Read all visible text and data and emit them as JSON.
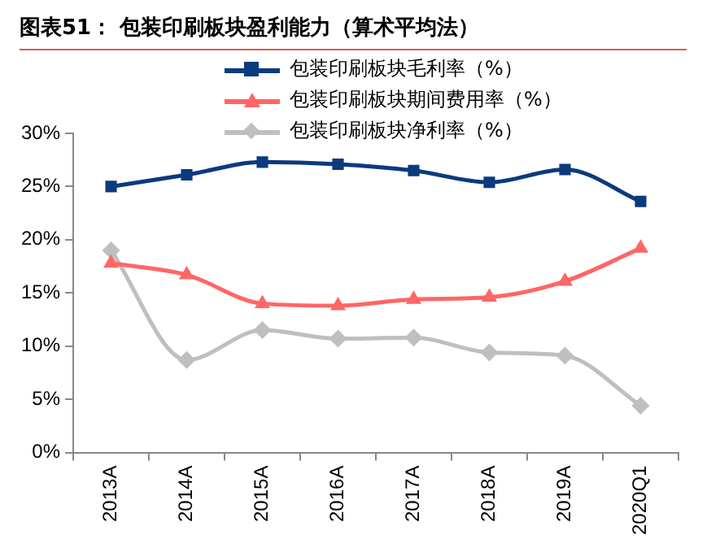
{
  "chart_data": {
    "type": "line",
    "title": "图表51：  包装印刷板块盈利能力（算术平均法）",
    "categories": [
      "2013A",
      "2014A",
      "2015A",
      "2016A",
      "2017A",
      "2018A",
      "2019A",
      "2020Q1"
    ],
    "series": [
      {
        "name": "包装印刷板块毛利率（%）",
        "color": "#0b3a7e",
        "marker": "square",
        "values": [
          25.0,
          26.1,
          27.3,
          27.1,
          26.5,
          25.4,
          26.6,
          23.6
        ]
      },
      {
        "name": "包装印刷板块期间费用率（%）",
        "color": "#ff6666",
        "marker": "triangle",
        "values": [
          17.8,
          16.7,
          14.0,
          13.8,
          14.4,
          14.6,
          16.1,
          19.2
        ]
      },
      {
        "name": "包装印刷板块净利率（%）",
        "color": "#bfbfbf",
        "marker": "diamond",
        "values": [
          19.0,
          8.7,
          11.5,
          10.7,
          10.8,
          9.4,
          9.1,
          4.4
        ]
      }
    ],
    "ylim": [
      0,
      30
    ],
    "yticks": [
      {
        "value": 0,
        "label": "0%"
      },
      {
        "value": 5,
        "label": "5%"
      },
      {
        "value": 10,
        "label": "10%"
      },
      {
        "value": 15,
        "label": "15%"
      },
      {
        "value": 20,
        "label": "20%"
      },
      {
        "value": 25,
        "label": "25%"
      },
      {
        "value": 30,
        "label": "30%"
      }
    ],
    "grid": false,
    "legend": "top"
  }
}
